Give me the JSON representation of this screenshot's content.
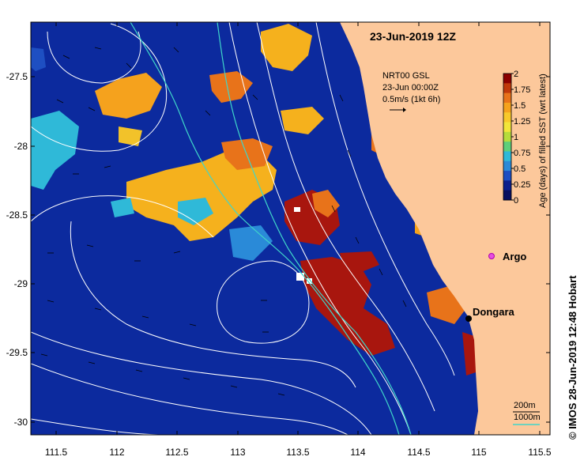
{
  "title": "23-Jun-2019 12Z",
  "current_info": {
    "line1": "NRT00 GSL",
    "line2": "23-Jun 00:00Z",
    "line3": "0.5m/s (1kt 6h)"
  },
  "colorbar": {
    "label": "Age (days) of filled SST (wrt latest)",
    "ticks": [
      "2",
      "1.75",
      "1.5",
      "1.25",
      "1",
      "0.75",
      "0.5",
      "0.25",
      "0"
    ],
    "colors": [
      "#8b0000",
      "#c0390b",
      "#e8731a",
      "#f5a21d",
      "#f8c92a",
      "#f2e63a",
      "#b6dc3c",
      "#5fcf7a",
      "#2fb9d8",
      "#2a8ad8",
      "#1e4fc2",
      "#0c1f8c",
      "#08105f"
    ]
  },
  "x_ticks": [
    "111.5",
    "112",
    "112.5",
    "113",
    "113.5",
    "114",
    "114.5",
    "115",
    "115.5"
  ],
  "y_ticks": [
    "-27.5",
    "-28",
    "-28.5",
    "-29",
    "-29.5",
    "-30"
  ],
  "places": {
    "argo": "Argo",
    "dongara": "Dongara"
  },
  "scale": {
    "depth1": "200m",
    "depth2": "1000m"
  },
  "credit": "© IMOS 28-Jun-2019 12:48 Hobart",
  "colors": {
    "ocean": "#0c2a9e",
    "land": "#fcc89b",
    "warm": "#f5b11d",
    "old": "#a8160e",
    "contour": "#ffffff",
    "bathy200": "#3fd6c9"
  }
}
